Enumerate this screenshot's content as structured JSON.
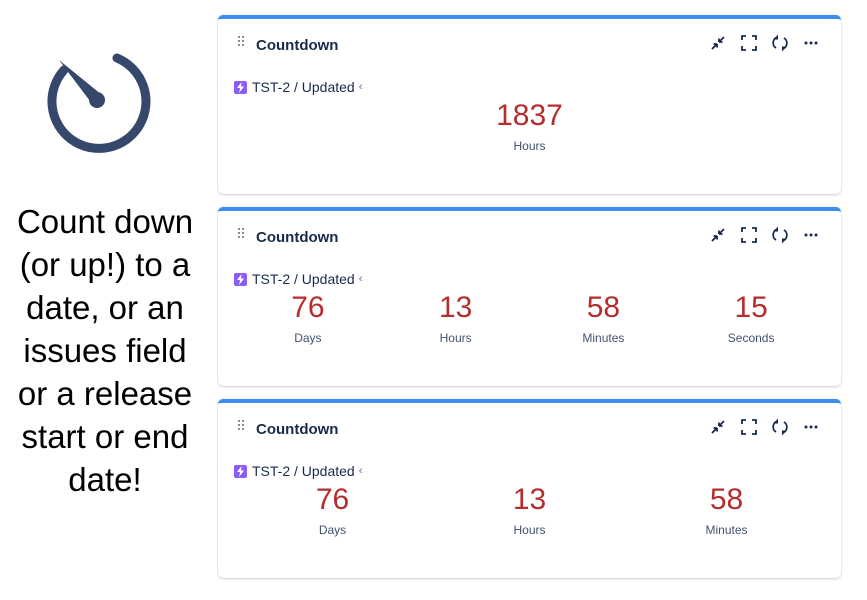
{
  "promo": {
    "icon": "stopwatch-icon",
    "lines": [
      "Count down",
      "(or up!) to a",
      "date, or an",
      "issues field",
      "or a release",
      "start or end",
      "date!"
    ]
  },
  "accent_color": "#3d8cf0",
  "number_color": "#b62d2d",
  "cards": [
    {
      "title": "Countdown",
      "source": "TST-2 / Updated",
      "units": [
        {
          "value": "1837",
          "label": "Hours"
        }
      ]
    },
    {
      "title": "Countdown",
      "source": "TST-2 / Updated",
      "units": [
        {
          "value": "76",
          "label": "Days"
        },
        {
          "value": "13",
          "label": "Hours"
        },
        {
          "value": "58",
          "label": "Minutes"
        },
        {
          "value": "15",
          "label": "Seconds"
        }
      ]
    },
    {
      "title": "Countdown",
      "source": "TST-2 / Updated",
      "units": [
        {
          "value": "76",
          "label": "Days"
        },
        {
          "value": "13",
          "label": "Hours"
        },
        {
          "value": "58",
          "label": "Minutes"
        }
      ]
    }
  ],
  "toolbar_icons": [
    "collapse-icon",
    "fullscreen-icon",
    "refresh-icon",
    "more-icon"
  ]
}
